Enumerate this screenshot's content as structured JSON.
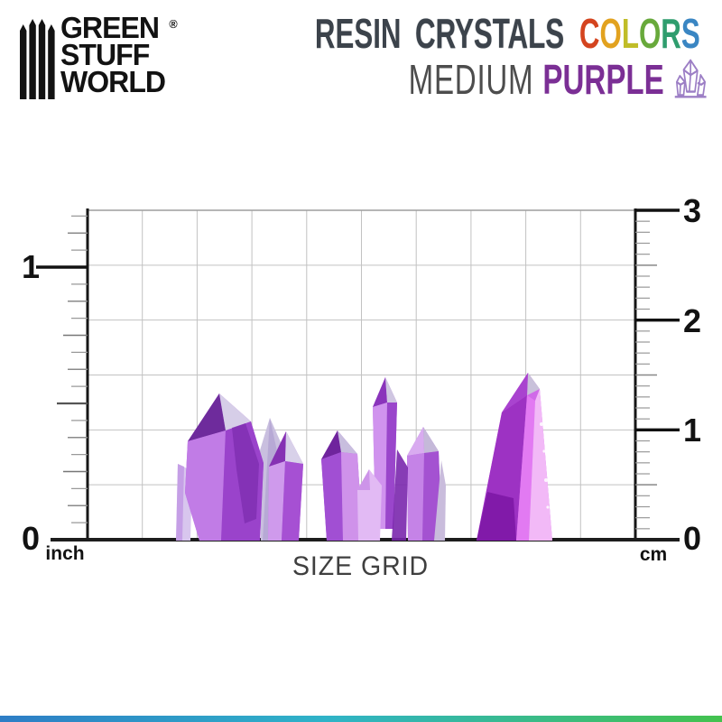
{
  "brand": {
    "logo_lines": [
      "GREEN",
      "STUFF",
      "WORLD"
    ],
    "registered_mark": "®"
  },
  "title": {
    "resin": "RESIN",
    "crystals": "CRYSTALS",
    "colors_letters": [
      {
        "ch": "C",
        "color": "#d4441f"
      },
      {
        "ch": "O",
        "color": "#e2a21f"
      },
      {
        "ch": "L",
        "color": "#c0bd28"
      },
      {
        "ch": "O",
        "color": "#68a93b"
      },
      {
        "ch": "R",
        "color": "#2f9d6e"
      },
      {
        "ch": "S",
        "color": "#3a86c3"
      }
    ],
    "line1_color": "#3c434b",
    "medium": "MEDIUM",
    "purple": "PURPLE",
    "medium_color": "#4d4d4d",
    "purple_color": "#7b2f95",
    "crystal_icon_color": "#9c7ec5"
  },
  "grid": {
    "caption": "SIZE GRID",
    "left_ruler": {
      "unit": "inch",
      "labels": [
        "1",
        "0"
      ]
    },
    "right_ruler": {
      "unit": "cm",
      "labels": [
        "3",
        "2",
        "1",
        "0"
      ]
    }
  },
  "crystals": {
    "palette": [
      "#6e2b9c",
      "#8f35c4",
      "#b164dc",
      "#cf92ec",
      "#e2b8f5",
      "#d06ae8",
      "#f2b9f7",
      "#c9bfdf"
    ]
  },
  "footer_bar_colors": [
    "#2e7dc6",
    "#2fb3c8",
    "#43c24e"
  ]
}
